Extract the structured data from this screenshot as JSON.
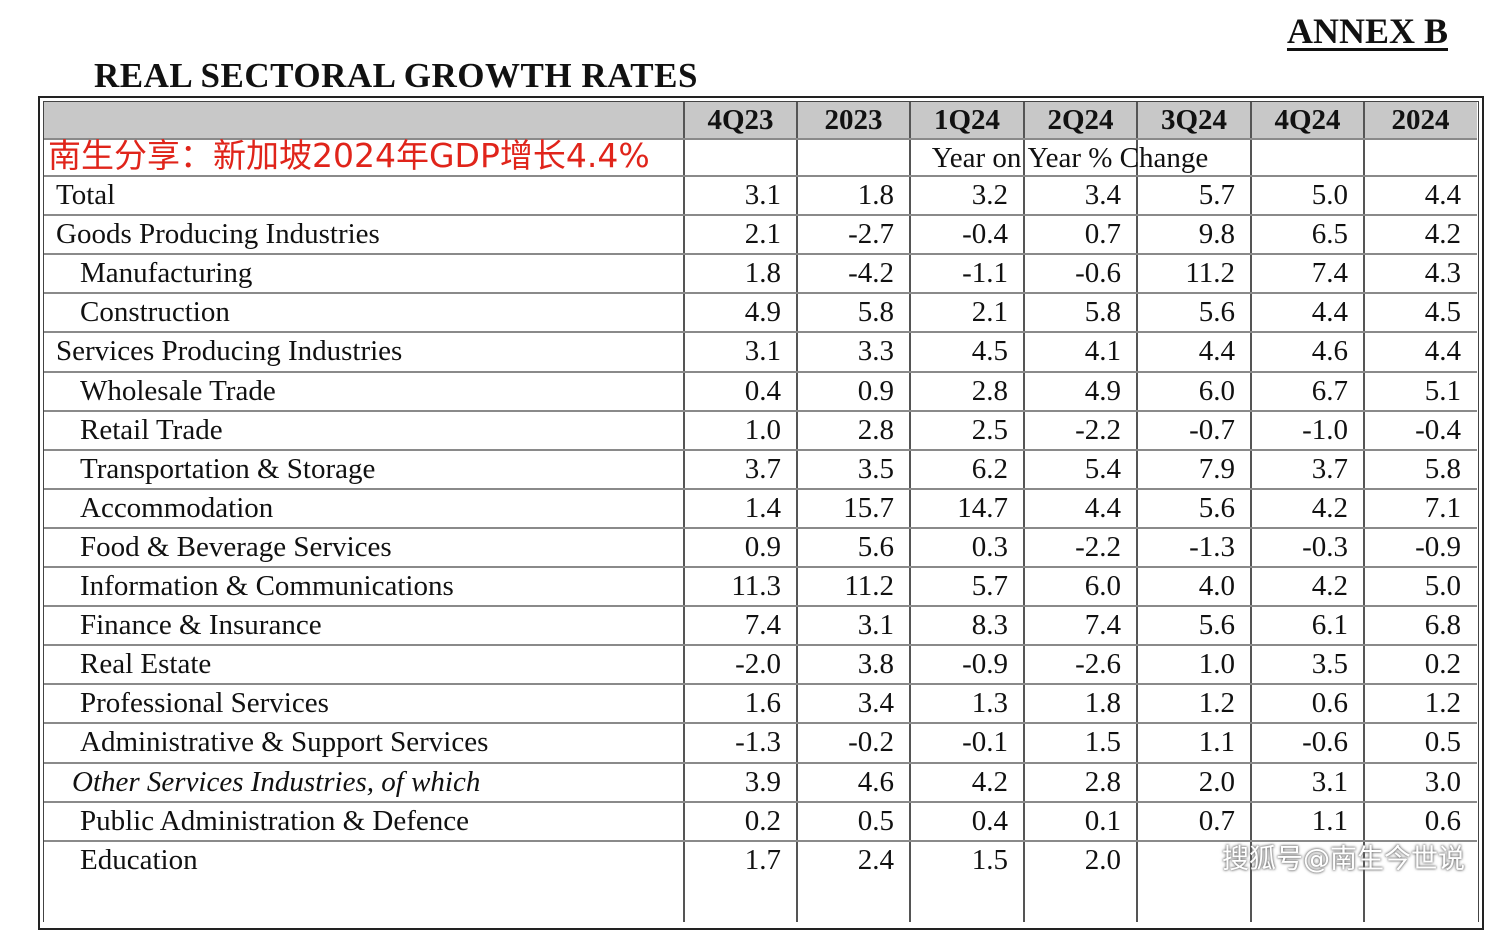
{
  "annex_label": "ANNEX B",
  "title": "REAL SECTORAL GROWTH RATES",
  "watermark_text": "南生分享：新加坡2024年GDP增长4.4%",
  "footer_watermark": "搜狐号@南生今世说",
  "subtitle": "Year on Year % Change",
  "columns": [
    "4Q23",
    "2023",
    "1Q24",
    "2Q24",
    "3Q24",
    "4Q24",
    "2024"
  ],
  "rows": [
    {
      "label": "Total",
      "level": 0,
      "values": [
        "3.1",
        "1.8",
        "3.2",
        "3.4",
        "5.7",
        "5.0",
        "4.4"
      ]
    },
    {
      "label": "Goods Producing Industries",
      "level": 0,
      "values": [
        "2.1",
        "-2.7",
        "-0.4",
        "0.7",
        "9.8",
        "6.5",
        "4.2"
      ]
    },
    {
      "label": "Manufacturing",
      "level": 1,
      "values": [
        "1.8",
        "-4.2",
        "-1.1",
        "-0.6",
        "11.2",
        "7.4",
        "4.3"
      ]
    },
    {
      "label": "Construction",
      "level": 1,
      "values": [
        "4.9",
        "5.8",
        "2.1",
        "5.8",
        "5.6",
        "4.4",
        "4.5"
      ]
    },
    {
      "label": "Services Producing Industries",
      "level": 0,
      "values": [
        "3.1",
        "3.3",
        "4.5",
        "4.1",
        "4.4",
        "4.6",
        "4.4"
      ]
    },
    {
      "label": "Wholesale Trade",
      "level": 1,
      "values": [
        "0.4",
        "0.9",
        "2.8",
        "4.9",
        "6.0",
        "6.7",
        "5.1"
      ]
    },
    {
      "label": "Retail Trade",
      "level": 1,
      "values": [
        "1.0",
        "2.8",
        "2.5",
        "-2.2",
        "-0.7",
        "-1.0",
        "-0.4"
      ]
    },
    {
      "label": "Transportation & Storage",
      "level": 1,
      "values": [
        "3.7",
        "3.5",
        "6.2",
        "5.4",
        "7.9",
        "3.7",
        "5.8"
      ]
    },
    {
      "label": "Accommodation",
      "level": 1,
      "values": [
        "1.4",
        "15.7",
        "14.7",
        "4.4",
        "5.6",
        "4.2",
        "7.1"
      ]
    },
    {
      "label": "Food & Beverage Services",
      "level": 1,
      "values": [
        "0.9",
        "5.6",
        "0.3",
        "-2.2",
        "-1.3",
        "-0.3",
        "-0.9"
      ]
    },
    {
      "label": "Information & Communications",
      "level": 1,
      "values": [
        "11.3",
        "11.2",
        "5.7",
        "6.0",
        "4.0",
        "4.2",
        "5.0"
      ]
    },
    {
      "label": "Finance & Insurance",
      "level": 1,
      "values": [
        "7.4",
        "3.1",
        "8.3",
        "7.4",
        "5.6",
        "6.1",
        "6.8"
      ]
    },
    {
      "label": "Real Estate",
      "level": 1,
      "values": [
        "-2.0",
        "3.8",
        "-0.9",
        "-2.6",
        "1.0",
        "3.5",
        "0.2"
      ]
    },
    {
      "label": "Professional Services",
      "level": 1,
      "values": [
        "1.6",
        "3.4",
        "1.3",
        "1.8",
        "1.2",
        "0.6",
        "1.2"
      ]
    },
    {
      "label": "Administrative & Support Services",
      "level": 1,
      "values": [
        "-1.3",
        "-0.2",
        "-0.1",
        "1.5",
        "1.1",
        "-0.6",
        "0.5"
      ]
    },
    {
      "label": "Other Services Industries, of which",
      "level": 0,
      "italic": true,
      "values": [
        "3.9",
        "4.6",
        "4.2",
        "2.8",
        "2.0",
        "3.1",
        "3.0"
      ]
    },
    {
      "label": "Public Administration & Defence",
      "level": 1,
      "values": [
        "0.2",
        "0.5",
        "0.4",
        "0.1",
        "0.7",
        "1.1",
        "0.6"
      ]
    },
    {
      "label": "Education",
      "level": 1,
      "values": [
        "1.7",
        "2.4",
        "1.5",
        "2.0",
        "",
        "",
        ""
      ]
    }
  ]
}
